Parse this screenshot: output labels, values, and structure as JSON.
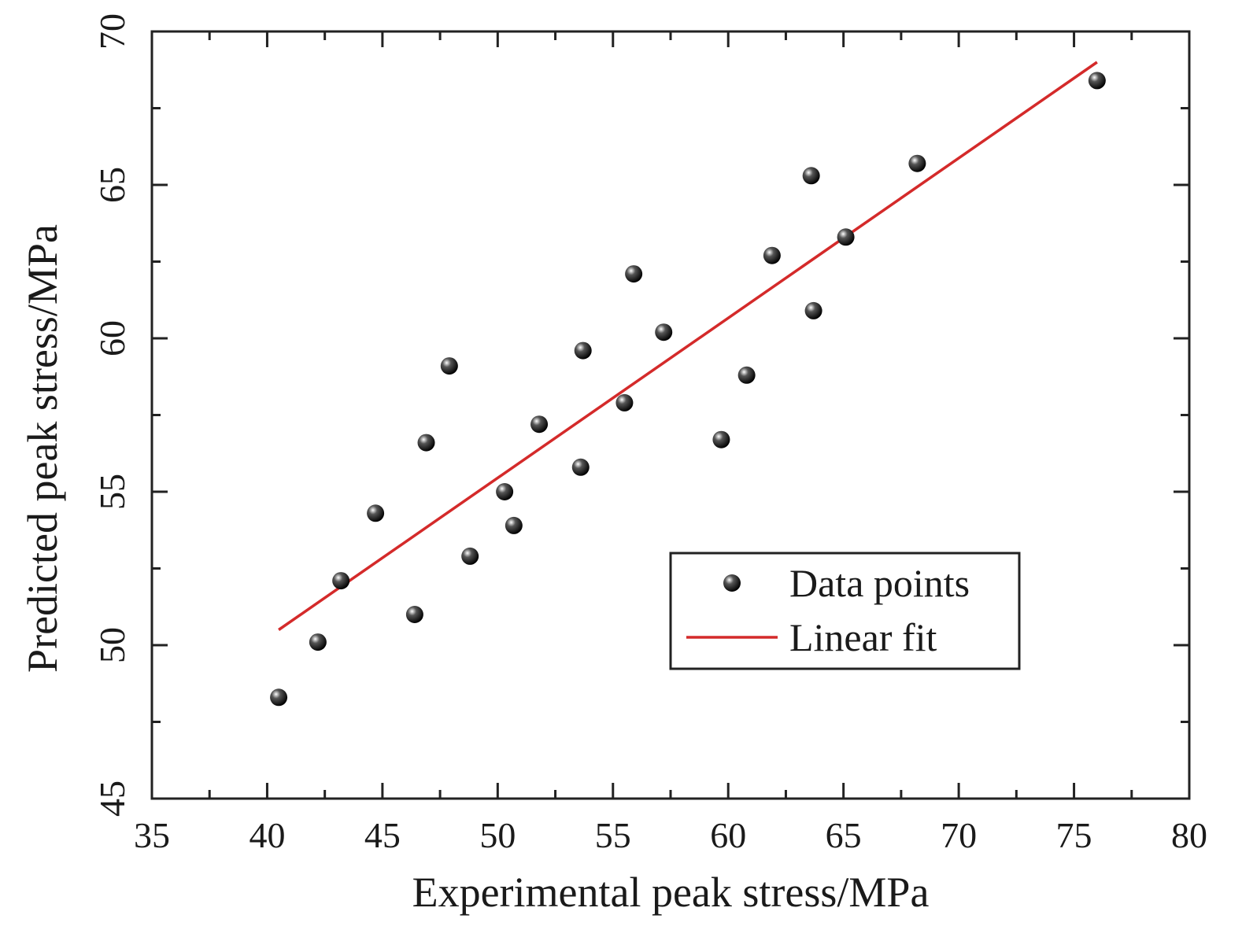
{
  "chart_data": {
    "type": "scatter",
    "title": "",
    "xlabel": "Experimental peak stress/MPa",
    "ylabel": "Predicted peak stress/MPa",
    "xlim": [
      35,
      80
    ],
    "ylim": [
      45,
      70
    ],
    "xticks": [
      "35",
      "40",
      "45",
      "50",
      "55",
      "60",
      "65",
      "70",
      "75",
      "80"
    ],
    "yticks": [
      "45",
      "50",
      "55",
      "60",
      "65",
      "70"
    ],
    "legend_position": "lower-right",
    "series": [
      {
        "name": "Data points",
        "kind": "scatter",
        "color": "#111111",
        "x": [
          40.5,
          42.2,
          43.2,
          44.7,
          46.4,
          46.9,
          47.9,
          48.8,
          50.3,
          50.7,
          51.8,
          53.6,
          53.7,
          55.5,
          55.9,
          57.2,
          59.7,
          60.8,
          61.9,
          63.6,
          63.7,
          65.1,
          68.2,
          76.0
        ],
        "y": [
          48.3,
          50.1,
          52.1,
          54.3,
          51.0,
          56.6,
          59.1,
          52.9,
          55.0,
          53.9,
          57.2,
          55.8,
          59.6,
          57.9,
          62.1,
          60.2,
          56.7,
          58.8,
          62.7,
          65.3,
          60.9,
          63.3,
          65.7,
          68.4
        ]
      },
      {
        "name": "Linear fit",
        "kind": "line",
        "color": "#d42a2a",
        "x": [
          40.5,
          76.0
        ],
        "y": [
          50.5,
          69.0
        ]
      }
    ]
  }
}
